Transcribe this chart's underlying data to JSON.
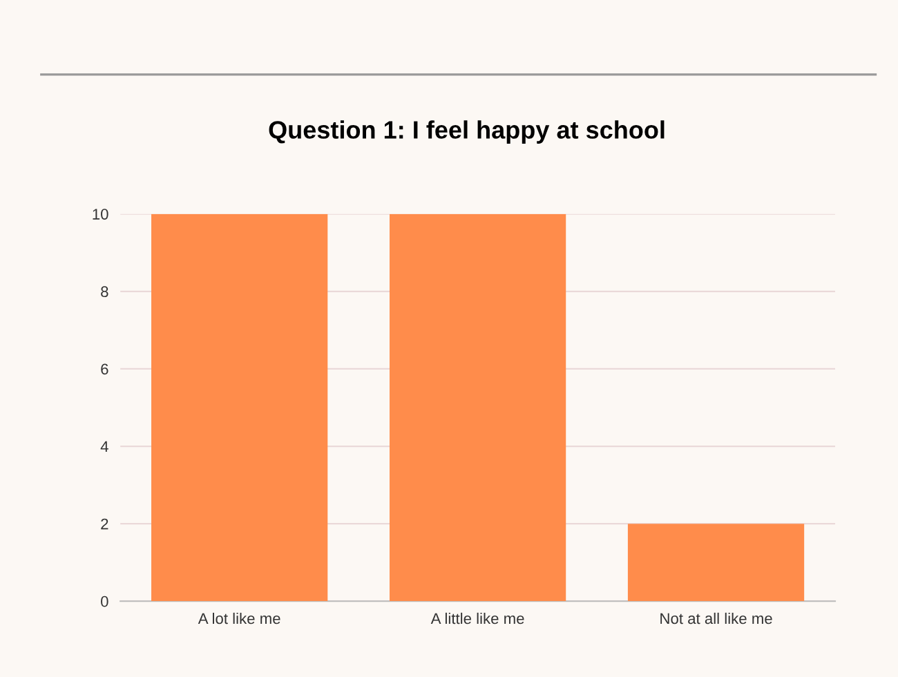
{
  "chart_data": {
    "type": "bar",
    "title": "Question 1: I feel happy at school",
    "categories": [
      "A lot like me",
      "A little like me",
      "Not at all like me"
    ],
    "values": [
      10,
      10,
      2
    ],
    "color": "#ff8c4b",
    "ylim": [
      0,
      10
    ],
    "yticks": [
      0,
      2,
      4,
      6,
      8,
      10
    ],
    "grid": "y",
    "legend": false
  }
}
